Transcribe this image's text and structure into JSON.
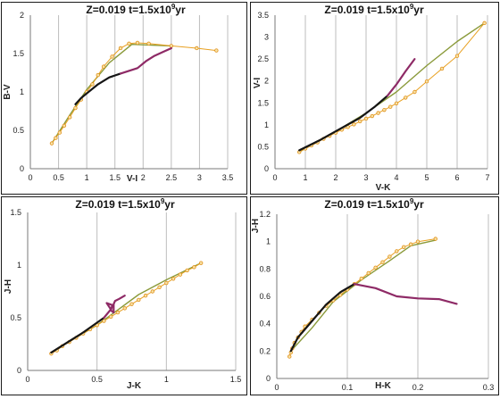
{
  "chart_data": [
    {
      "type": "line",
      "title": "Z=0.019   t=1.5x10",
      "title_sup": "9",
      "title_suffix": "yr",
      "xlabel": "V-I",
      "ylabel": "B-V",
      "xlim": [
        0,
        3.5
      ],
      "ylim": [
        0,
        2
      ],
      "xticks": [
        0,
        0.5,
        1,
        1.5,
        2,
        2.5,
        3,
        3.5
      ],
      "yticks": [
        0,
        0.5,
        1,
        1.5,
        2
      ],
      "xtick_labels": [
        "0",
        "0.5",
        "1",
        "1.5",
        "2",
        "2.5",
        "3",
        "3.5"
      ],
      "ytick_labels": [
        "0",
        "0.5",
        "1",
        "1.5",
        "2"
      ],
      "grid": "vertical",
      "series": [
        {
          "color": "#8a9a3a",
          "marker": "none",
          "x": [
            0.38,
            0.7,
            1.0,
            1.4,
            1.8,
            2.5
          ],
          "y": [
            0.33,
            0.7,
            1.03,
            1.38,
            1.62,
            1.6
          ]
        },
        {
          "color": "#e8a020",
          "marker": "circle",
          "x": [
            0.38,
            0.45,
            0.52,
            0.6,
            0.7,
            0.8,
            0.9,
            1.0,
            1.1,
            1.2,
            1.3,
            1.45,
            1.6,
            1.75,
            1.9,
            2.1,
            2.5,
            2.95,
            3.3
          ],
          "y": [
            0.33,
            0.4,
            0.47,
            0.56,
            0.67,
            0.79,
            0.9,
            1.0,
            1.1,
            1.22,
            1.33,
            1.46,
            1.57,
            1.63,
            1.64,
            1.63,
            1.6,
            1.57,
            1.54
          ]
        },
        {
          "color": "#151515",
          "marker": "none",
          "x": [
            0.8,
            0.9,
            1.0,
            1.2,
            1.4,
            1.6
          ],
          "y": [
            0.84,
            0.92,
            0.98,
            1.1,
            1.19,
            1.24
          ]
        },
        {
          "color": "#8e2a66",
          "marker": "none",
          "x": [
            1.6,
            1.9,
            2.05,
            2.2,
            2.35,
            2.5
          ],
          "y": [
            1.24,
            1.31,
            1.4,
            1.47,
            1.52,
            1.57
          ]
        }
      ]
    },
    {
      "type": "line",
      "title": "Z=0.019   t=1.5x10",
      "title_sup": "9",
      "title_suffix": "yr",
      "xlabel": "V-K",
      "ylabel": "V-I",
      "xlim": [
        0,
        7
      ],
      "ylim": [
        0,
        3.5
      ],
      "xticks": [
        0,
        1,
        2,
        3,
        4,
        5,
        6,
        7
      ],
      "yticks": [
        0,
        0.5,
        1,
        1.5,
        2,
        2.5,
        3,
        3.5
      ],
      "xtick_labels": [
        "0",
        "1",
        "2",
        "3",
        "4",
        "5",
        "6",
        "7"
      ],
      "ytick_labels": [
        "0",
        "0.5",
        "1",
        "1.5",
        "2",
        "2.5",
        "3",
        "3.5"
      ],
      "grid": "vertical",
      "series": [
        {
          "color": "#8a9a3a",
          "marker": "none",
          "x": [
            0.8,
            2,
            3,
            4,
            5,
            6,
            6.9
          ],
          "y": [
            0.38,
            0.85,
            1.27,
            1.75,
            2.35,
            2.9,
            3.32
          ]
        },
        {
          "color": "#e8a020",
          "marker": "circle",
          "x": [
            0.8,
            1.0,
            1.2,
            1.4,
            1.6,
            1.8,
            2.0,
            2.2,
            2.4,
            2.6,
            2.8,
            3.0,
            3.2,
            3.4,
            3.6,
            3.8,
            4.0,
            4.3,
            4.6,
            5.0,
            5.5,
            6.0,
            6.9
          ],
          "y": [
            0.38,
            0.46,
            0.53,
            0.6,
            0.68,
            0.75,
            0.82,
            0.89,
            0.95,
            1.01,
            1.08,
            1.14,
            1.2,
            1.27,
            1.34,
            1.41,
            1.49,
            1.62,
            1.75,
            1.99,
            2.28,
            2.57,
            3.32
          ]
        },
        {
          "color": "#151515",
          "marker": "none",
          "x": [
            0.8,
            1.5,
            2.2,
            2.8,
            3.3,
            3.7
          ],
          "y": [
            0.42,
            0.66,
            0.93,
            1.16,
            1.42,
            1.66
          ]
        },
        {
          "color": "#8e2a66",
          "marker": "none",
          "x": [
            3.7,
            4.0,
            4.3,
            4.6
          ],
          "y": [
            1.66,
            1.92,
            2.22,
            2.5
          ]
        }
      ]
    },
    {
      "type": "line",
      "title": "Z=0.019   t=1.5x10",
      "title_sup": "9",
      "title_suffix": "yr",
      "xlabel": "J-K",
      "ylabel": "J-H",
      "xlim": [
        0,
        1.5
      ],
      "ylim": [
        0,
        1.5
      ],
      "xticks": [
        0,
        0.5,
        1,
        1.5
      ],
      "yticks": [
        0,
        0.5,
        1,
        1.5
      ],
      "xtick_labels": [
        "0",
        "0.5",
        "1",
        "1.5"
      ],
      "ytick_labels": [
        "0",
        "0.5",
        "1",
        "1.5"
      ],
      "grid": "vertical",
      "series": [
        {
          "color": "#8a9a3a",
          "marker": "none",
          "x": [
            0.17,
            0.5,
            0.8,
            1.0,
            1.25
          ],
          "y": [
            0.17,
            0.43,
            0.72,
            0.86,
            1.02
          ]
        },
        {
          "color": "#e8a020",
          "marker": "circle",
          "x": [
            0.17,
            0.21,
            0.25,
            0.3,
            0.35,
            0.4,
            0.45,
            0.5,
            0.55,
            0.6,
            0.65,
            0.7,
            0.75,
            0.8,
            0.85,
            0.9,
            0.95,
            1.0,
            1.05,
            1.1,
            1.15,
            1.2,
            1.25
          ],
          "y": [
            0.16,
            0.19,
            0.23,
            0.27,
            0.31,
            0.35,
            0.39,
            0.43,
            0.47,
            0.51,
            0.55,
            0.59,
            0.63,
            0.67,
            0.71,
            0.75,
            0.79,
            0.83,
            0.87,
            0.91,
            0.95,
            0.98,
            1.02
          ]
        },
        {
          "color": "#151515",
          "marker": "none",
          "x": [
            0.17,
            0.4,
            0.55
          ],
          "y": [
            0.17,
            0.36,
            0.5
          ]
        },
        {
          "color": "#8e2a66",
          "marker": "none",
          "x": [
            0.55,
            0.6,
            0.57,
            0.61,
            0.6,
            0.62,
            0.62,
            0.63,
            0.66,
            0.7
          ],
          "y": [
            0.5,
            0.58,
            0.64,
            0.62,
            0.57,
            0.55,
            0.63,
            0.66,
            0.68,
            0.71
          ]
        }
      ]
    },
    {
      "type": "line",
      "title": "Z=0.019   t=1.5x10",
      "title_sup": "9",
      "title_suffix": "yr",
      "xlabel": "H-K",
      "ylabel": "J-H",
      "xlim": [
        0,
        0.3
      ],
      "ylim": [
        0,
        1.2
      ],
      "xticks": [
        0,
        0.1,
        0.2,
        0.3
      ],
      "yticks": [
        0,
        0.2,
        0.4,
        0.6,
        0.8,
        1,
        1.2
      ],
      "xtick_labels": [
        "0",
        "0.1",
        "0.2",
        "0.3"
      ],
      "ytick_labels": [
        "0",
        "0.2",
        "0.4",
        "0.6",
        "0.8",
        "1",
        "1.2"
      ],
      "grid": "vertical",
      "series": [
        {
          "color": "#8a9a3a",
          "marker": "none",
          "x": [
            0.02,
            0.05,
            0.08,
            0.12,
            0.16,
            0.19,
            0.225
          ],
          "y": [
            0.2,
            0.37,
            0.56,
            0.72,
            0.86,
            0.97,
            1.01
          ]
        },
        {
          "color": "#e8a020",
          "marker": "circle",
          "x": [
            0.018,
            0.02,
            0.022,
            0.025,
            0.03,
            0.035,
            0.04,
            0.05,
            0.06,
            0.07,
            0.08,
            0.09,
            0.1,
            0.11,
            0.12,
            0.13,
            0.14,
            0.15,
            0.16,
            0.17,
            0.18,
            0.19,
            0.2,
            0.225
          ],
          "y": [
            0.16,
            0.19,
            0.22,
            0.26,
            0.3,
            0.34,
            0.38,
            0.43,
            0.48,
            0.53,
            0.57,
            0.61,
            0.65,
            0.69,
            0.73,
            0.77,
            0.81,
            0.85,
            0.89,
            0.93,
            0.96,
            0.98,
            1.0,
            1.02
          ]
        },
        {
          "color": "#151515",
          "marker": "none",
          "x": [
            0.02,
            0.03,
            0.05,
            0.07,
            0.09,
            0.11
          ],
          "y": [
            0.2,
            0.3,
            0.42,
            0.54,
            0.63,
            0.69
          ]
        },
        {
          "color": "#8e2a66",
          "marker": "none",
          "x": [
            0.11,
            0.14,
            0.17,
            0.2,
            0.23,
            0.255
          ],
          "y": [
            0.69,
            0.66,
            0.6,
            0.585,
            0.58,
            0.545
          ]
        }
      ]
    }
  ]
}
